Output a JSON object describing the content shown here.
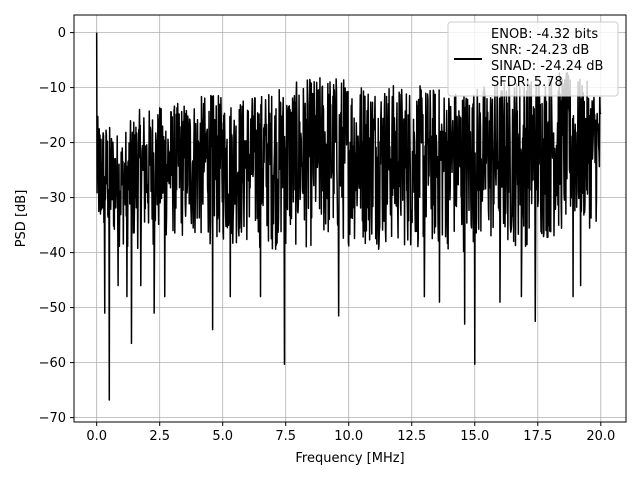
{
  "chart_data": {
    "type": "line",
    "title": "",
    "xlabel": "Frequency [MHz]",
    "ylabel": "PSD [dB]",
    "xlim": [
      -0.9,
      21.0
    ],
    "ylim": [
      -70.8,
      3.2
    ],
    "xticks": [
      0.0,
      2.5,
      5.0,
      7.5,
      10.0,
      12.5,
      15.0,
      17.5,
      20.0
    ],
    "xtick_labels": [
      "0.0",
      "2.5",
      "5.0",
      "7.5",
      "10.0",
      "12.5",
      "15.0",
      "17.5",
      "20.0"
    ],
    "yticks": [
      0,
      -10,
      -20,
      -30,
      -40,
      -50,
      -60,
      -70
    ],
    "ytick_labels": [
      "0",
      "−10",
      "−20",
      "−30",
      "−40",
      "−50",
      "−60",
      "−70"
    ],
    "grid": true,
    "legend_position": "top-right",
    "legend": {
      "lines": [
        "ENOB: -4.32 bits",
        "SNR: -24.23 dB",
        "SINAD: -24.24 dB",
        "SFDR: 5.78"
      ]
    },
    "series": [
      {
        "color": "#000000",
        "freq_range_mhz": [
          0.0,
          20.0
        ],
        "peaks": [
          {
            "x": 0.0,
            "y": 0.0
          },
          {
            "x": 0.03,
            "y": -20.0
          },
          {
            "x": 0.15,
            "y": -33.0
          },
          {
            "x": 0.32,
            "y": -51.0
          },
          {
            "x": 0.5,
            "y": -66.8
          },
          {
            "x": 0.85,
            "y": -46.0
          },
          {
            "x": 1.2,
            "y": -48.0
          },
          {
            "x": 1.38,
            "y": -56.5
          },
          {
            "x": 1.75,
            "y": -46.0
          },
          {
            "x": 2.28,
            "y": -51.0
          },
          {
            "x": 2.7,
            "y": -48.0
          },
          {
            "x": 4.6,
            "y": -54.0
          },
          {
            "x": 5.3,
            "y": -48.0
          },
          {
            "x": 6.5,
            "y": -48.0
          },
          {
            "x": 7.45,
            "y": -60.3
          },
          {
            "x": 9.6,
            "y": -51.5
          },
          {
            "x": 13.0,
            "y": -48.0
          },
          {
            "x": 13.6,
            "y": -49.0
          },
          {
            "x": 14.6,
            "y": -53.0
          },
          {
            "x": 15.0,
            "y": -60.3
          },
          {
            "x": 16.0,
            "y": -49.0
          },
          {
            "x": 16.85,
            "y": -48.0
          },
          {
            "x": 17.4,
            "y": -52.5
          },
          {
            "x": 18.9,
            "y": -48.0
          },
          {
            "x": 19.2,
            "y": -46.0
          }
        ],
        "envelope": {
          "upper": [
            {
              "x": 0.0,
              "y": -15.0
            },
            {
              "x": 1.0,
              "y": -18.5
            },
            {
              "x": 1.6,
              "y": -14.0
            },
            {
              "x": 3.0,
              "y": -13.0
            },
            {
              "x": 4.5,
              "y": -11.0
            },
            {
              "x": 5.5,
              "y": -12.0
            },
            {
              "x": 7.5,
              "y": -9.5
            },
            {
              "x": 9.2,
              "y": -7.3
            },
            {
              "x": 10.5,
              "y": -8.5
            },
            {
              "x": 12.5,
              "y": -9.5
            },
            {
              "x": 14.5,
              "y": -10.0
            },
            {
              "x": 16.5,
              "y": -8.0
            },
            {
              "x": 18.5,
              "y": -6.8
            },
            {
              "x": 20.0,
              "y": -10.0
            }
          ],
          "lower": [
            {
              "x": 0.0,
              "y": -38.0
            },
            {
              "x": 1.5,
              "y": -40.0
            },
            {
              "x": 3.0,
              "y": -38.0
            },
            {
              "x": 5.0,
              "y": -39.0
            },
            {
              "x": 7.5,
              "y": -40.0
            },
            {
              "x": 10.0,
              "y": -39.0
            },
            {
              "x": 12.5,
              "y": -40.0
            },
            {
              "x": 15.0,
              "y": -40.0
            },
            {
              "x": 17.5,
              "y": -39.0
            },
            {
              "x": 20.0,
              "y": -35.0
            }
          ]
        }
      }
    ]
  }
}
